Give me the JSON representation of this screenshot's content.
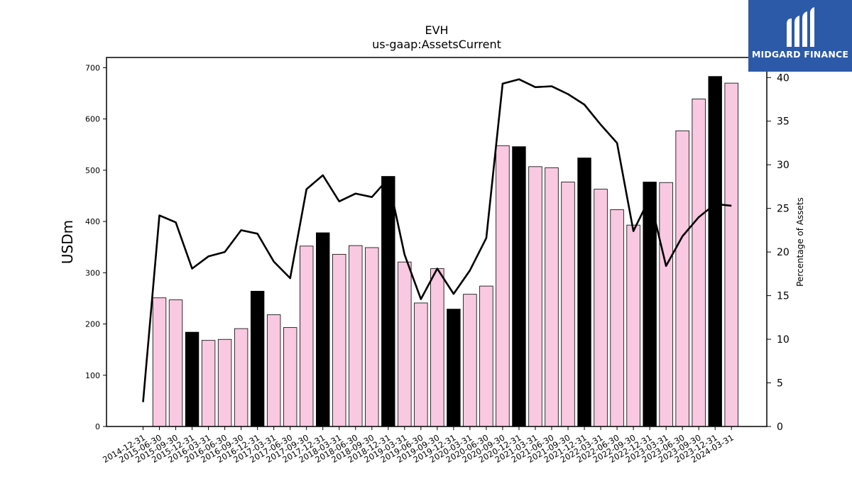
{
  "chart_data": {
    "type": "bar",
    "title": "EVH",
    "subtitle": "us-gaap:AssetsCurrent",
    "ylabel": "USDm",
    "y2label": "Percentage of Assets",
    "ylim": [
      0,
      720
    ],
    "y2lim": [
      0,
      42.3
    ],
    "yticks": [
      0,
      100,
      200,
      300,
      400,
      500,
      600,
      700
    ],
    "y2ticks": [
      0,
      5,
      10,
      15,
      20,
      25,
      30,
      35,
      40
    ],
    "categories": [
      "2014-12-31",
      "2015-06-30",
      "2015-09-30",
      "2015-12-31",
      "2016-03-31",
      "2016-06-30",
      "2016-09-30",
      "2016-12-31",
      "2017-03-31",
      "2017-06-30",
      "2017-09-30",
      "2017-12-31",
      "2018-03-31",
      "2018-06-30",
      "2018-09-30",
      "2018-12-31",
      "2019-03-31",
      "2019-06-30",
      "2019-09-30",
      "2019-12-31",
      "2020-03-31",
      "2020-06-30",
      "2020-09-30",
      "2020-12-31",
      "2021-03-31",
      "2021-06-30",
      "2021-09-30",
      "2021-12-31",
      "2022-03-31",
      "2022-06-30",
      "2022-09-30",
      "2022-12-31",
      "2023-03-31",
      "2023-06-30",
      "2023-09-30",
      "2023-12-31",
      "2024-03-31"
    ],
    "series": [
      {
        "kind": "bar",
        "values": [
          null,
          251,
          247,
          184,
          168,
          170,
          191,
          264,
          218,
          193,
          352,
          378,
          336,
          353,
          349,
          488,
          321,
          241,
          308,
          229,
          258,
          274,
          548,
          546,
          507,
          505,
          477,
          524,
          463,
          423,
          393,
          477,
          476,
          577,
          639,
          683,
          670
        ],
        "highlight": [
          false,
          false,
          false,
          true,
          false,
          false,
          false,
          true,
          false,
          false,
          false,
          true,
          false,
          false,
          false,
          true,
          false,
          false,
          false,
          true,
          false,
          false,
          false,
          true,
          false,
          false,
          false,
          true,
          false,
          false,
          false,
          true,
          false,
          false,
          false,
          true,
          false
        ],
        "colors": {
          "normal": "#f9c8e1",
          "highlight": "#000000"
        }
      },
      {
        "kind": "line",
        "axis": "right",
        "values": [
          2.8,
          24.2,
          23.4,
          18.1,
          19.5,
          20.0,
          22.5,
          22.1,
          18.9,
          17.0,
          27.2,
          28.8,
          25.8,
          26.7,
          26.3,
          28.4,
          19.7,
          14.6,
          18.1,
          15.2,
          17.9,
          21.6,
          39.3,
          39.8,
          38.9,
          39.0,
          38.1,
          36.9,
          34.6,
          32.5,
          22.4,
          26.2,
          18.4,
          21.8,
          24.0,
          25.5,
          25.3
        ],
        "color": "#000000"
      }
    ],
    "grid": false,
    "legend": "none"
  },
  "logo": {
    "text": "MIDGARD FINANCE",
    "icon": "midgard-logo-icon",
    "bg_color": "#2c5aa8"
  }
}
